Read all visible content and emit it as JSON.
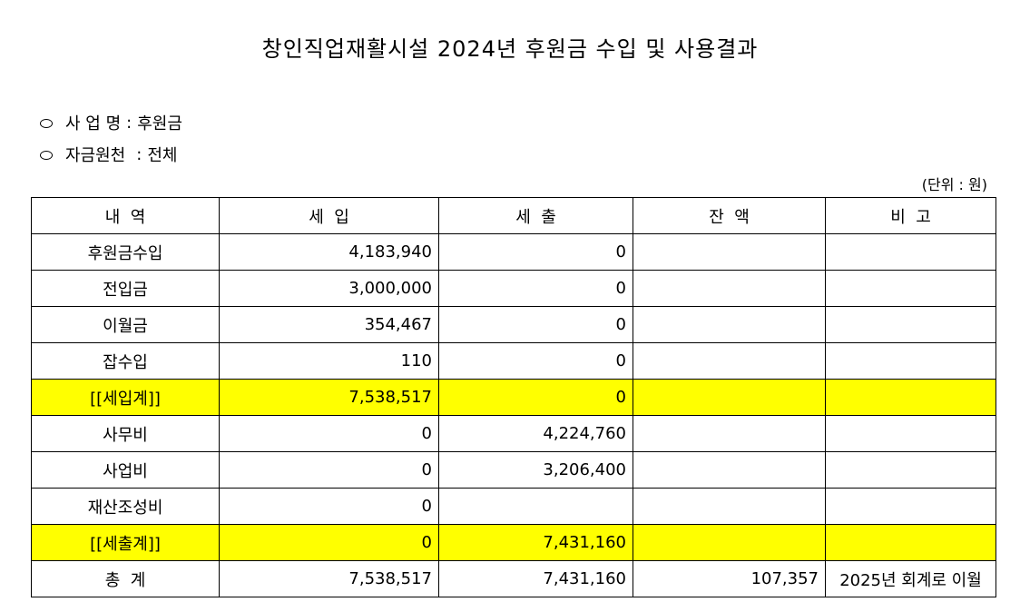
{
  "title": "창인직업재활시설 2024년 후원금 수입 및 사용결과",
  "meta": {
    "business": {
      "label": "사 업 명",
      "value": "후원금"
    },
    "fund_source": {
      "label": "자금원천",
      "value": "전체"
    }
  },
  "unit": "(단위 : 원)",
  "table": {
    "headers": [
      "내  역",
      "세  입",
      "세  출",
      "잔  액",
      "비  고"
    ],
    "rows": [
      {
        "name": "후원금수입",
        "income": "4,183,940",
        "expense": "0",
        "balance": "",
        "note": ""
      },
      {
        "name": "전입금",
        "income": "3,000,000",
        "expense": "0",
        "balance": "",
        "note": ""
      },
      {
        "name": "이월금",
        "income": "354,467",
        "expense": "0",
        "balance": "",
        "note": ""
      },
      {
        "name": "잡수입",
        "income": "110",
        "expense": "0",
        "balance": "",
        "note": ""
      },
      {
        "name": "[[세입계]]",
        "income": "7,538,517",
        "expense": "0",
        "balance": "",
        "note": ""
      },
      {
        "name": "사무비",
        "income": "0",
        "expense": "4,224,760",
        "balance": "",
        "note": ""
      },
      {
        "name": "사업비",
        "income": "0",
        "expense": "3,206,400",
        "balance": "",
        "note": ""
      },
      {
        "name": "재산조성비",
        "income": "0",
        "expense": "",
        "balance": "",
        "note": ""
      },
      {
        "name": "[[세출계]]",
        "income": "0",
        "expense": "7,431,160",
        "balance": "",
        "note": ""
      },
      {
        "name": "총  계",
        "income": "7,538,517",
        "expense": "7,431,160",
        "balance": "107,357",
        "note": "2025년 회계로 이월"
      }
    ],
    "highlight_color": "#ffff00"
  }
}
